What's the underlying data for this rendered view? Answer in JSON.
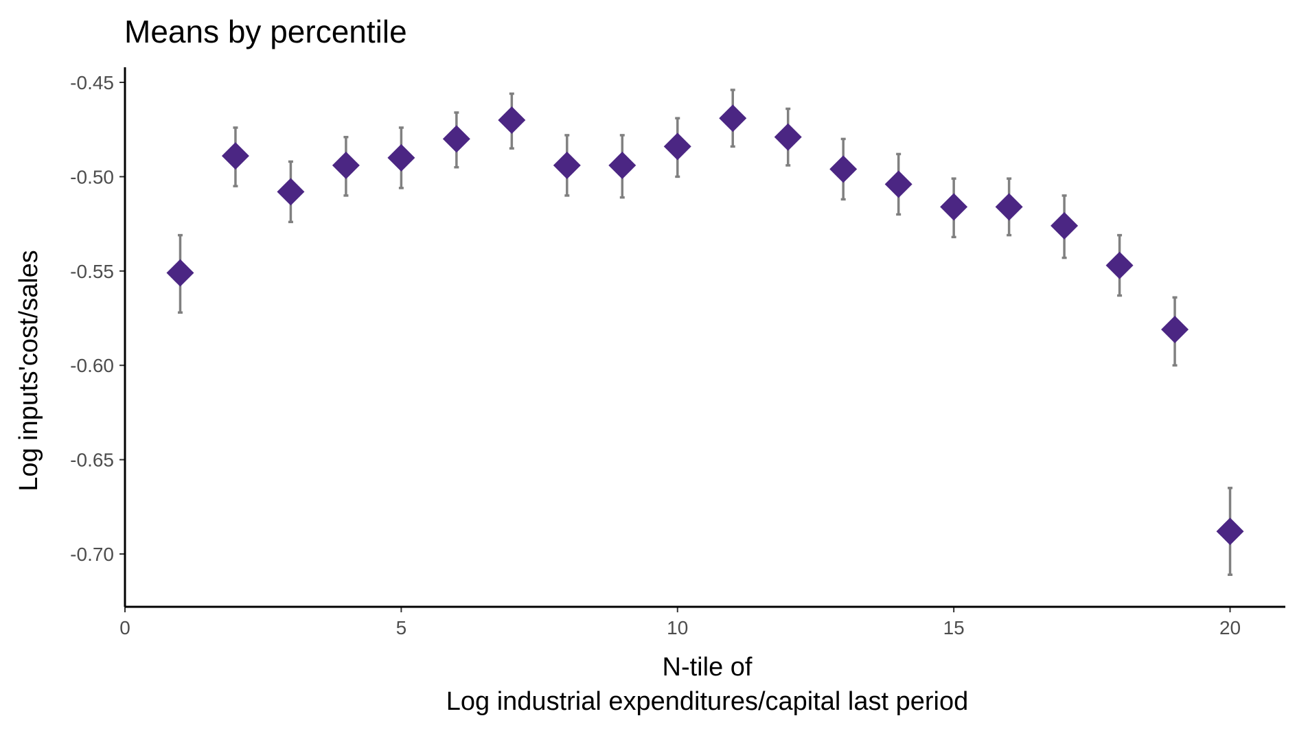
{
  "chart_data": {
    "type": "scatter",
    "title": "Means by percentile",
    "xlabel_lines": [
      "N-tile of",
      "Log industrial expenditures/capital last period"
    ],
    "ylabel": "Log inputs'cost/sales",
    "xlim": [
      0,
      21
    ],
    "ylim": [
      -0.728,
      -0.442
    ],
    "x_ticks": [
      0,
      5,
      10,
      15,
      20
    ],
    "x_tick_labels": [
      "0",
      "5",
      "10",
      "15",
      "20"
    ],
    "y_ticks": [
      -0.45,
      -0.5,
      -0.55,
      -0.6,
      -0.65,
      -0.7
    ],
    "y_tick_labels": [
      "-0.45",
      "-0.50",
      "-0.55",
      "-0.60",
      "-0.65",
      "-0.70"
    ],
    "grid": false,
    "marker": "diamond",
    "point_color": "#4B2683",
    "errorbar_color": "#808080",
    "points": [
      {
        "x": 1,
        "y": -0.551,
        "lo": -0.572,
        "hi": -0.531
      },
      {
        "x": 2,
        "y": -0.489,
        "lo": -0.505,
        "hi": -0.474
      },
      {
        "x": 3,
        "y": -0.508,
        "lo": -0.524,
        "hi": -0.492
      },
      {
        "x": 4,
        "y": -0.494,
        "lo": -0.51,
        "hi": -0.479
      },
      {
        "x": 5,
        "y": -0.49,
        "lo": -0.506,
        "hi": -0.474
      },
      {
        "x": 6,
        "y": -0.48,
        "lo": -0.495,
        "hi": -0.466
      },
      {
        "x": 7,
        "y": -0.47,
        "lo": -0.485,
        "hi": -0.456
      },
      {
        "x": 8,
        "y": -0.494,
        "lo": -0.51,
        "hi": -0.478
      },
      {
        "x": 9,
        "y": -0.494,
        "lo": -0.511,
        "hi": -0.478
      },
      {
        "x": 10,
        "y": -0.484,
        "lo": -0.5,
        "hi": -0.469
      },
      {
        "x": 11,
        "y": -0.469,
        "lo": -0.484,
        "hi": -0.454
      },
      {
        "x": 12,
        "y": -0.479,
        "lo": -0.494,
        "hi": -0.464
      },
      {
        "x": 13,
        "y": -0.496,
        "lo": -0.512,
        "hi": -0.48
      },
      {
        "x": 14,
        "y": -0.504,
        "lo": -0.52,
        "hi": -0.488
      },
      {
        "x": 15,
        "y": -0.516,
        "lo": -0.532,
        "hi": -0.501
      },
      {
        "x": 16,
        "y": -0.516,
        "lo": -0.531,
        "hi": -0.501
      },
      {
        "x": 17,
        "y": -0.526,
        "lo": -0.543,
        "hi": -0.51
      },
      {
        "x": 18,
        "y": -0.547,
        "lo": -0.563,
        "hi": -0.531
      },
      {
        "x": 19,
        "y": -0.581,
        "lo": -0.6,
        "hi": -0.564
      },
      {
        "x": 20,
        "y": -0.688,
        "lo": -0.711,
        "hi": -0.665
      }
    ]
  }
}
